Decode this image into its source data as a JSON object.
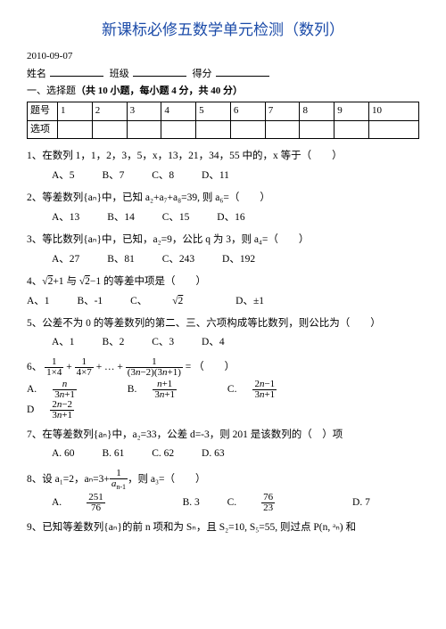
{
  "title": "新课标必修五数学单元检测（数列）",
  "date": "2010-09-07",
  "info": {
    "name_label": "姓名",
    "class_label": "班级",
    "score_label": "得分"
  },
  "section1": {
    "label": "一、选择题",
    "desc": "（共 10 小题，每小题 4 分，共 40 分）"
  },
  "answer_table": {
    "row1_head": "题号",
    "row2_head": "选项",
    "cols": [
      "1",
      "2",
      "3",
      "4",
      "5",
      "6",
      "7",
      "8",
      "9",
      "10"
    ]
  },
  "q1": {
    "text": "1、在数列 1，1，2，3，5，x，13，21，34，55 中的，x 等于（　　）",
    "A": "A、5",
    "B": "B、7",
    "C": "C、8",
    "D": "D、11"
  },
  "q2": {
    "text": "2、等差数列{aₙ}中，已知 a₂+a₇+a₈=39, 则 a₆=（　　）",
    "A": "A、13",
    "B": "B、14",
    "C": "C、15",
    "D": "D、16"
  },
  "q3": {
    "text": "3、等比数列{aₙ}中，已知，a₂=9，公比 q 为 3，则 a₄=（　　）",
    "A": "A、27",
    "B": "B、81",
    "C": "C、243",
    "D": "D、192"
  },
  "q4": {
    "text_prefix": "4、",
    "text_mid1": " 与 ",
    "text_suffix": " 的等差中项是（　　）",
    "A": "A、1",
    "B": "B、-1",
    "C_prefix": "C、",
    "D": "D、±1"
  },
  "q5": {
    "text": "5、公差不为 0 的等差数列的第二、三、六项构成等比数列，则公比为（　　）",
    "A": "A、1",
    "B": "B、2",
    "C": "C、3",
    "D": "D、4"
  },
  "q6": {
    "prefix": "6、",
    "eq_tail": " = （　　）",
    "A_prefix": "A. ",
    "B_prefix": "B. ",
    "C_prefix": "C. ",
    "D_prefix": "D "
  },
  "q7": {
    "text": "7、在等差数列{aₙ}中，a₂=33，公差 d=-3，则 201 是该数列的（　）项",
    "A": "A. 60",
    "B": "B. 61",
    "C": "C. 62",
    "D": "D. 63"
  },
  "q8": {
    "prefix": "8、设 a₁=2，aₙ=3+",
    "suffix": "，则 a₃=（　　）",
    "A_prefix": "A. ",
    "B": "B. 3",
    "C_prefix": "C. ",
    "D": "D. 7"
  },
  "q9": {
    "text": "9、已知等差数列{aₙ}的前 n 项和为 Sₙ，且 S₂=10, S₅=55, 则过点 P(n, ᵃₙ) 和"
  }
}
